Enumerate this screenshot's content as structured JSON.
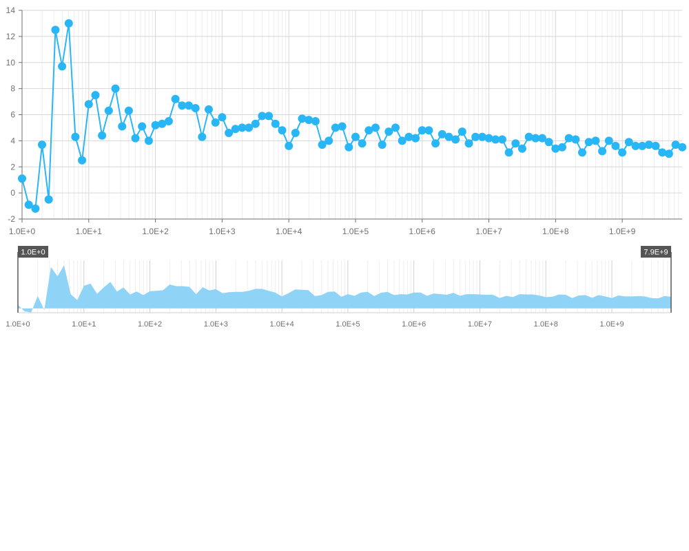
{
  "chart_data": {
    "type": "line",
    "x_scale": "log",
    "xlim": [
      1,
      7900000000
    ],
    "ylim": [
      -2,
      14
    ],
    "y_ticks": [
      -2,
      0,
      2,
      4,
      6,
      8,
      10,
      12,
      14
    ],
    "x_ticks": [
      {
        "value": 1,
        "label": "1.0E+0"
      },
      {
        "value": 10,
        "label": "1.0E+1"
      },
      {
        "value": 100,
        "label": "1.0E+2"
      },
      {
        "value": 1000,
        "label": "1.0E+3"
      },
      {
        "value": 10000,
        "label": "1.0E+4"
      },
      {
        "value": 100000,
        "label": "1.0E+5"
      },
      {
        "value": 1000000,
        "label": "1.0E+6"
      },
      {
        "value": 10000000,
        "label": "1.0E+7"
      },
      {
        "value": 100000000,
        "label": "1.0E+8"
      },
      {
        "value": 1000000000,
        "label": "1.0E+9"
      }
    ],
    "grid": true,
    "legend": "none",
    "series": [
      {
        "color": "#29b6f6",
        "x_log10_start": 0,
        "x_log10_step": 0.1,
        "values": [
          1.1,
          -0.9,
          -1.2,
          3.7,
          -0.5,
          12.5,
          9.7,
          13.0,
          4.3,
          2.5,
          6.8,
          7.5,
          4.4,
          6.3,
          8.0,
          5.1,
          6.3,
          4.2,
          5.1,
          4.0,
          5.2,
          5.3,
          5.5,
          7.2,
          6.7,
          6.7,
          6.5,
          4.3,
          6.4,
          5.4,
          5.8,
          4.6,
          4.9,
          5.0,
          5.0,
          5.3,
          5.9,
          5.9,
          5.3,
          4.8,
          3.6,
          4.6,
          5.7,
          5.6,
          5.5,
          3.7,
          4.0,
          5.0,
          5.1,
          3.5,
          4.3,
          3.8,
          4.8,
          5.0,
          3.7,
          4.7,
          5.0,
          4.0,
          4.3,
          4.2,
          4.8,
          4.8,
          3.8,
          4.5,
          4.3,
          4.1,
          4.7,
          3.8,
          4.3,
          4.3,
          4.2,
          4.1,
          4.1,
          3.1,
          3.8,
          3.4,
          4.3,
          4.2,
          4.2,
          3.9,
          3.4,
          3.5,
          4.2,
          4.1,
          3.1,
          3.9,
          4.0,
          3.2,
          4.0,
          3.6,
          3.1,
          3.9,
          3.6,
          3.6,
          3.7,
          3.6,
          3.1,
          3.0,
          3.7,
          3.5
        ]
      }
    ]
  },
  "navigator": {
    "range_start_label": "1.0E+0",
    "range_end_label": "7.9E+9",
    "fill_color": "#8fd3f7",
    "handle_color": "#555555"
  }
}
